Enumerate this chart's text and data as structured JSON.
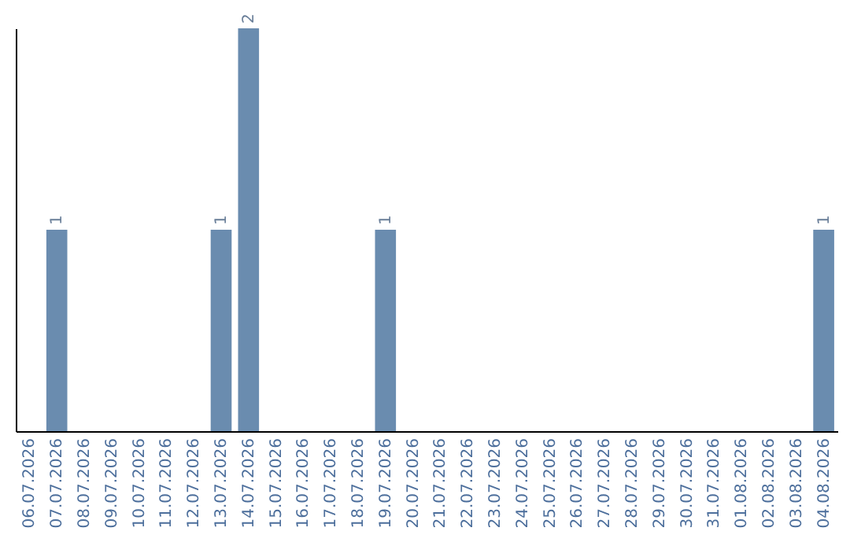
{
  "chart_data": {
    "type": "bar",
    "categories": [
      "06.07.2026",
      "07.07.2026",
      "08.07.2026",
      "09.07.2026",
      "10.07.2026",
      "11.07.2026",
      "12.07.2026",
      "13.07.2026",
      "14.07.2026",
      "15.07.2026",
      "16.07.2026",
      "17.07.2026",
      "18.07.2026",
      "19.07.2026",
      "20.07.2026",
      "21.07.2026",
      "22.07.2026",
      "23.07.2026",
      "24.07.2026",
      "25.07.2026",
      "26.07.2026",
      "27.07.2026",
      "28.07.2026",
      "29.07.2026",
      "30.07.2026",
      "31.07.2026",
      "01.08.2026",
      "02.08.2026",
      "03.08.2026",
      "04.08.2026"
    ],
    "values": [
      0,
      1,
      0,
      0,
      0,
      0,
      0,
      1,
      2,
      0,
      0,
      0,
      0,
      1,
      0,
      0,
      0,
      0,
      0,
      0,
      0,
      0,
      0,
      0,
      0,
      0,
      0,
      0,
      0,
      1
    ],
    "value_labels": [
      null,
      "1",
      null,
      null,
      null,
      null,
      null,
      "1",
      "2",
      null,
      null,
      null,
      null,
      "1",
      null,
      null,
      null,
      null,
      null,
      null,
      null,
      null,
      null,
      null,
      null,
      null,
      null,
      null,
      null,
      "1"
    ],
    "color": "#6a8caf",
    "tick_labels": "x",
    "grid": false
  }
}
